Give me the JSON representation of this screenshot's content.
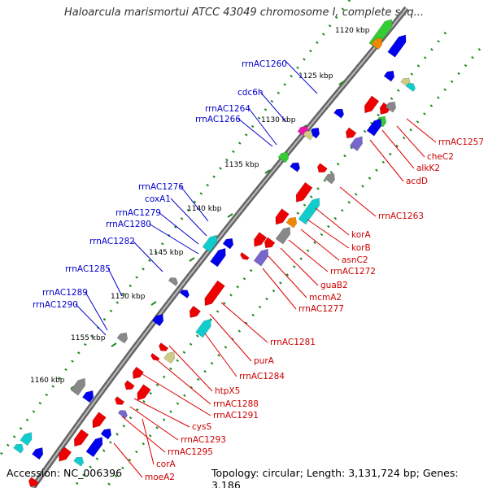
{
  "title": "Haloarcula marismortui ATCC 43049 chromosome I, complete seq...",
  "accession_text": "Accession: NC_006396",
  "summary_text": "Topology: circular; Length: 3,131,724 bp; Genes: 3,186",
  "kbp_ticks": [
    "1120 kbp",
    "1125 kbp",
    "1130 kbp",
    "1135 kbp",
    "1140 kbp",
    "1145 kbp",
    "1150 kbp",
    "1155 kbp",
    "1160 kbp"
  ],
  "left_labels": [
    "rrnAC1260",
    "cdc6h",
    "rrnAC1264",
    "rrnAC1266",
    "rrnAC1276",
    "coxA1",
    "rrnAC1279",
    "rrnAC1280",
    "rrnAC1282",
    "rrnAC1285",
    "rrnAC1289",
    "rrnAC1290"
  ],
  "right_labels": [
    "rrnAC1257",
    "cheC2",
    "alkK2",
    "acdD",
    "rrnAC1263",
    "korA",
    "korB",
    "asnC2",
    "rrnAC1272",
    "guaB2",
    "mcmA2",
    "rrnAC1277",
    "rrnAC1281",
    "purA",
    "rrnAC1284",
    "htpX5",
    "rrnAC1288",
    "rrnAC1291",
    "cysS",
    "rrnAC1293",
    "rrnAC1295",
    "corA",
    "moeA2"
  ],
  "colors": {
    "left_label": "#0000cc",
    "right_label": "#cc0000",
    "gene_red": "#ee0000",
    "gene_blue": "#0000ee",
    "gene_cyan": "#11cccc",
    "gene_purple": "#7766cc",
    "gene_gray": "#888888",
    "gene_olive": "#cccc88",
    "gene_magenta": "#ee11aa",
    "gene_green": "#33cc33",
    "gene_orange": "#ee8800",
    "backbone": "#777777",
    "tick_green": "#228822"
  }
}
